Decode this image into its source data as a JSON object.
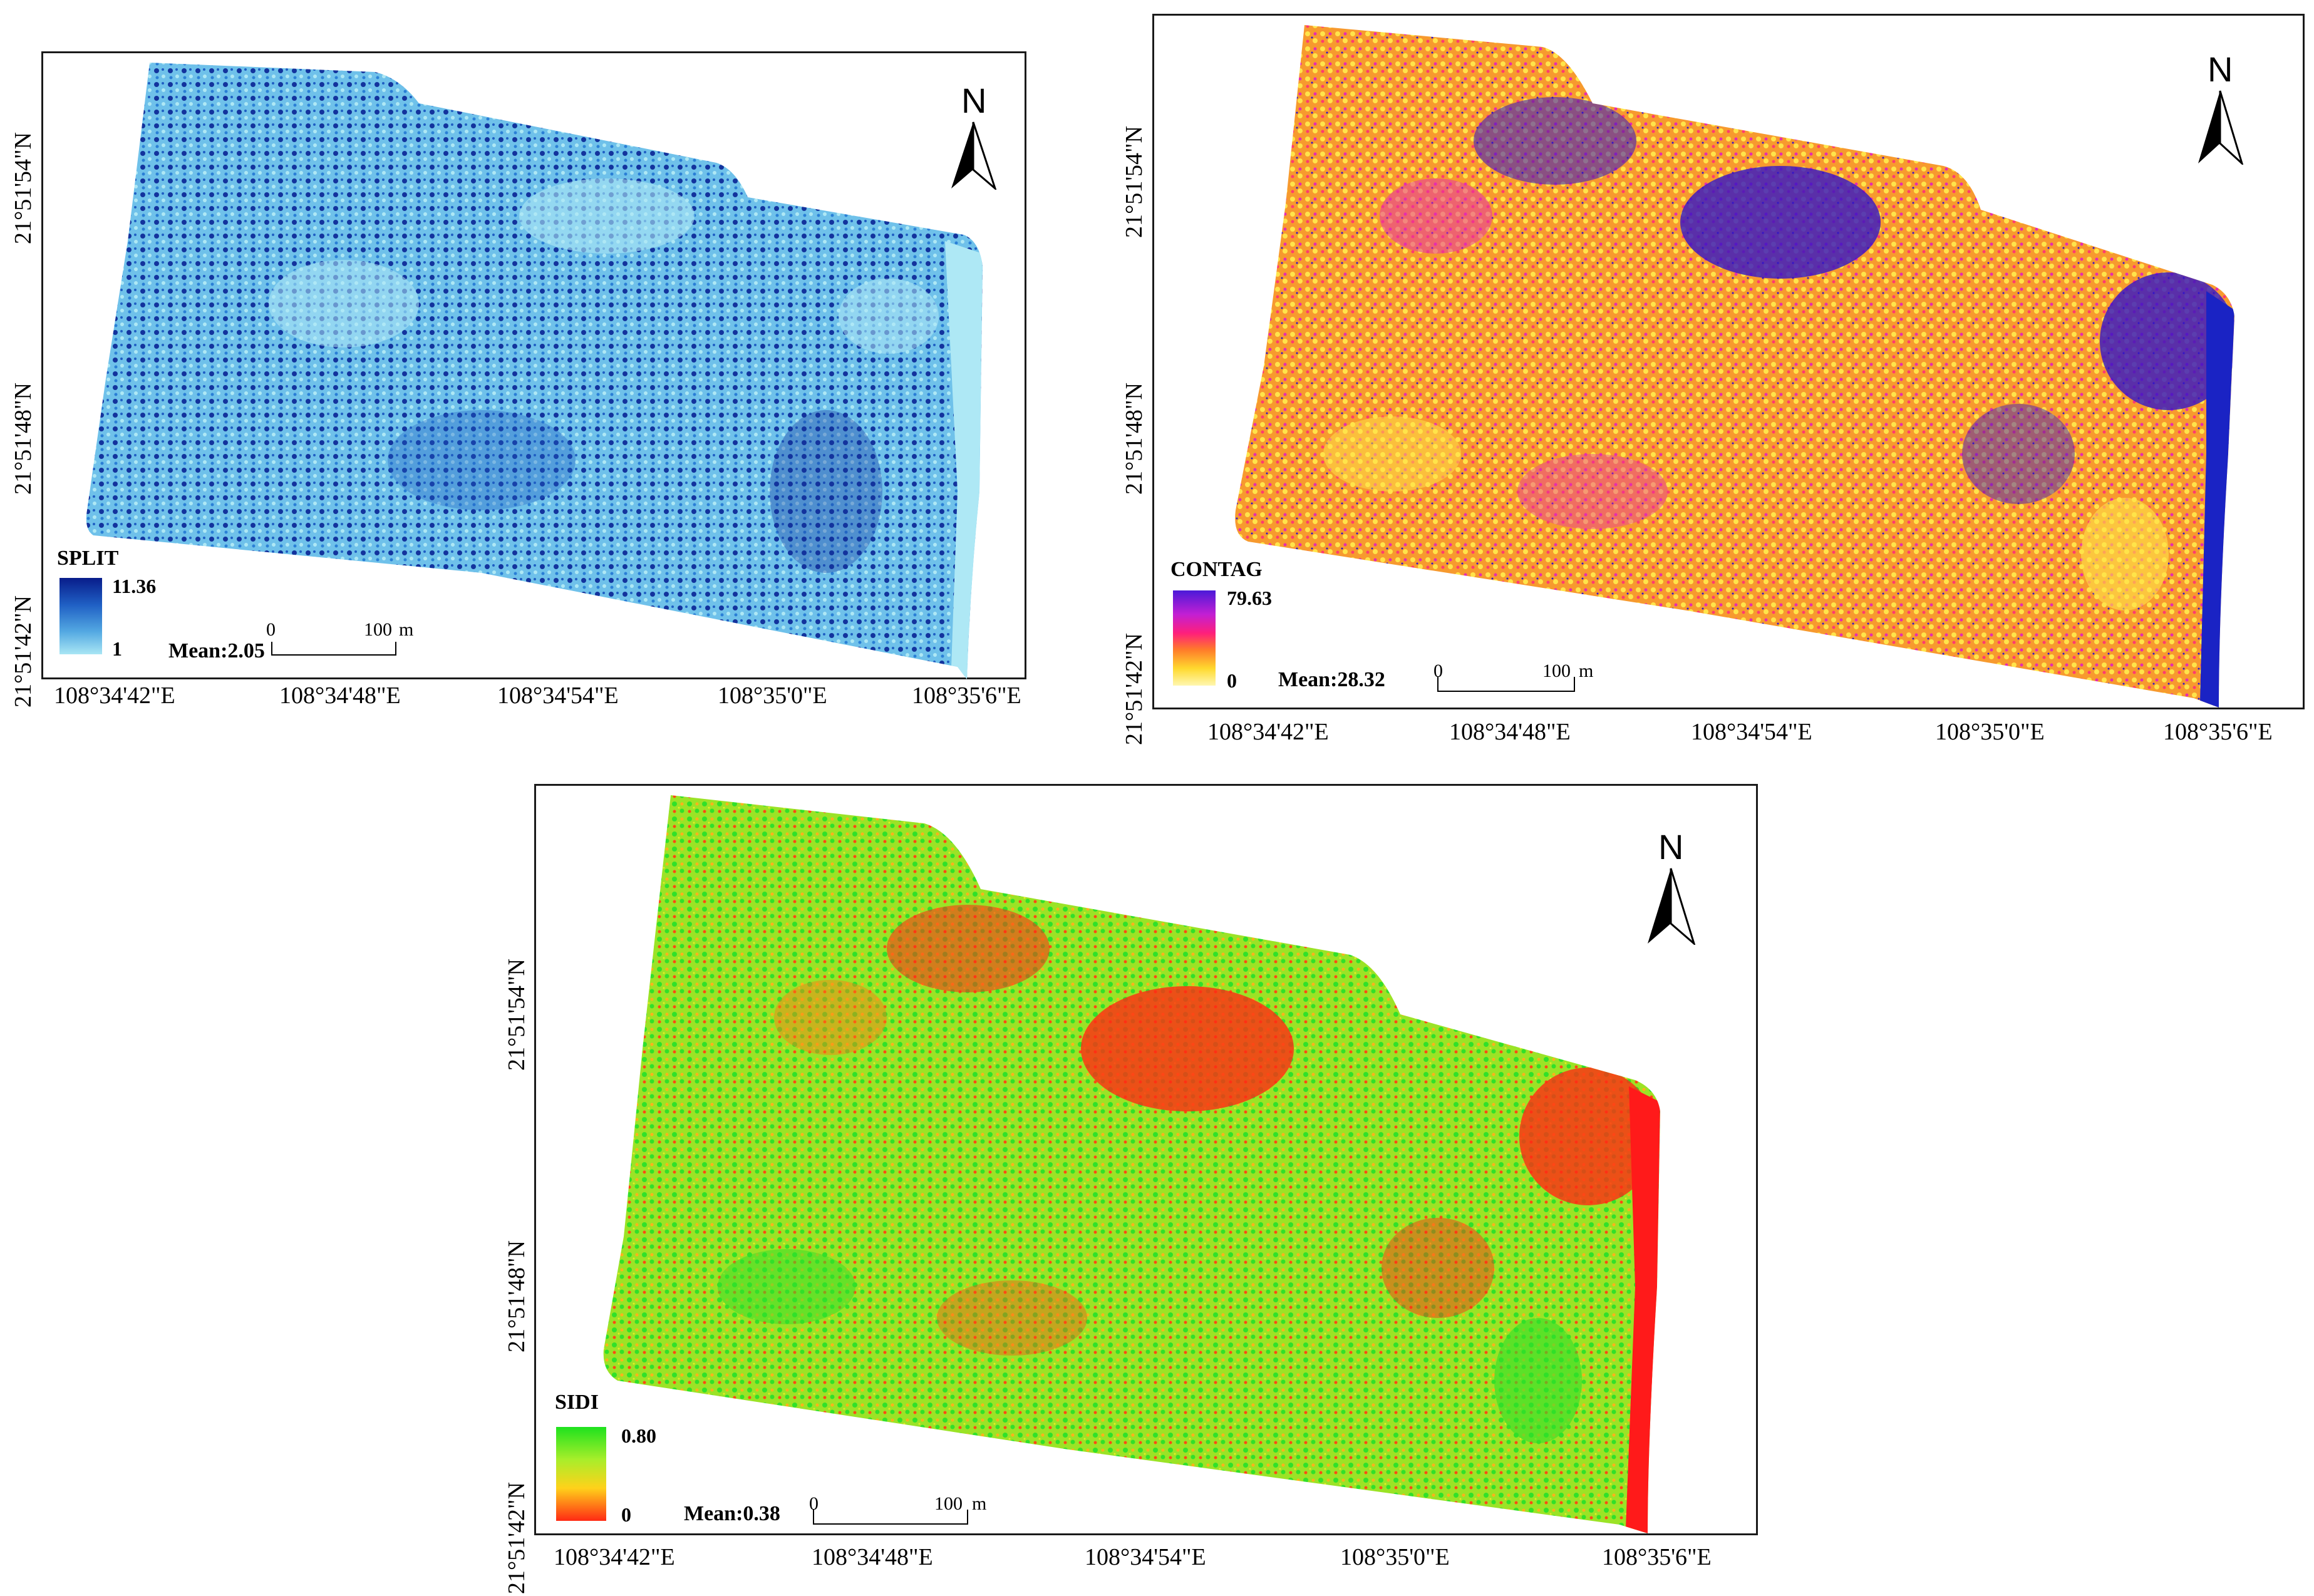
{
  "figure": {
    "panels": [
      {
        "id": "split",
        "legend_title": "SPLIT",
        "legend_max": "11.36",
        "legend_min": "1",
        "mean_label": "Mean:2.05",
        "scale_zero": "0",
        "scale_end": "100",
        "scale_unit": "m",
        "north_label": "N",
        "lon_ticks": [
          "108°34'42\"E",
          "108°34'48\"E",
          "108°34'54\"E",
          "108°35'0\"E",
          "108°35'6\"E"
        ],
        "lat_ticks": [
          "21°51'54\"N",
          "21°51'48\"N",
          "21°51'42\"N"
        ],
        "ramp_colors": [
          "#081c8a",
          "#1f5fc4",
          "#53a8e2",
          "#a9e6f4"
        ],
        "fill_colors": {
          "base": "#6fc1ea",
          "light": "#aee8f5",
          "dark": "#13339d"
        }
      },
      {
        "id": "contag",
        "legend_title": "CONTAG",
        "legend_max": "79.63",
        "legend_min": "0",
        "mean_label": "Mean:28.32",
        "scale_zero": "0",
        "scale_end": "100",
        "scale_unit": "m",
        "north_label": "N",
        "lon_ticks": [
          "108°34'42\"E",
          "108°34'48\"E",
          "108°34'54\"E",
          "108°35'0\"E",
          "108°35'6\"E"
        ],
        "lat_ticks": [
          "21°51'54\"N",
          "21°51'48\"N",
          "21°51'42\"N"
        ],
        "ramp_colors": [
          "#4b1ad8",
          "#c21fd4",
          "#ff1f7a",
          "#ff7a2a",
          "#ffd92e",
          "#fff7b0"
        ],
        "fill_colors": {
          "base": "#f79a2e",
          "light": "#ffe44a",
          "dark": "#3214c8",
          "mid": "#e62cb0",
          "edge": "#1a23c4"
        }
      },
      {
        "id": "sidi",
        "legend_title": "SIDI",
        "legend_max": "0.80",
        "legend_min": "0",
        "mean_label": "Mean:0.38",
        "scale_zero": "0",
        "scale_end": "100",
        "scale_unit": "m",
        "north_label": "N",
        "lon_ticks": [
          "108°34'42\"E",
          "108°34'48\"E",
          "108°34'54\"E",
          "108°35'0\"E",
          "108°35'6\"E"
        ],
        "lat_ticks": [
          "21°51'54\"N",
          "21°51'48\"N",
          "21°51'42\"N"
        ],
        "ramp_colors": [
          "#1ee21e",
          "#a9ee2a",
          "#ffd21a",
          "#ff2a14"
        ],
        "fill_colors": {
          "base": "#9be326",
          "light": "#31e02a",
          "dark": "#ff2a14",
          "edge": "#ff1a1a"
        }
      }
    ]
  }
}
